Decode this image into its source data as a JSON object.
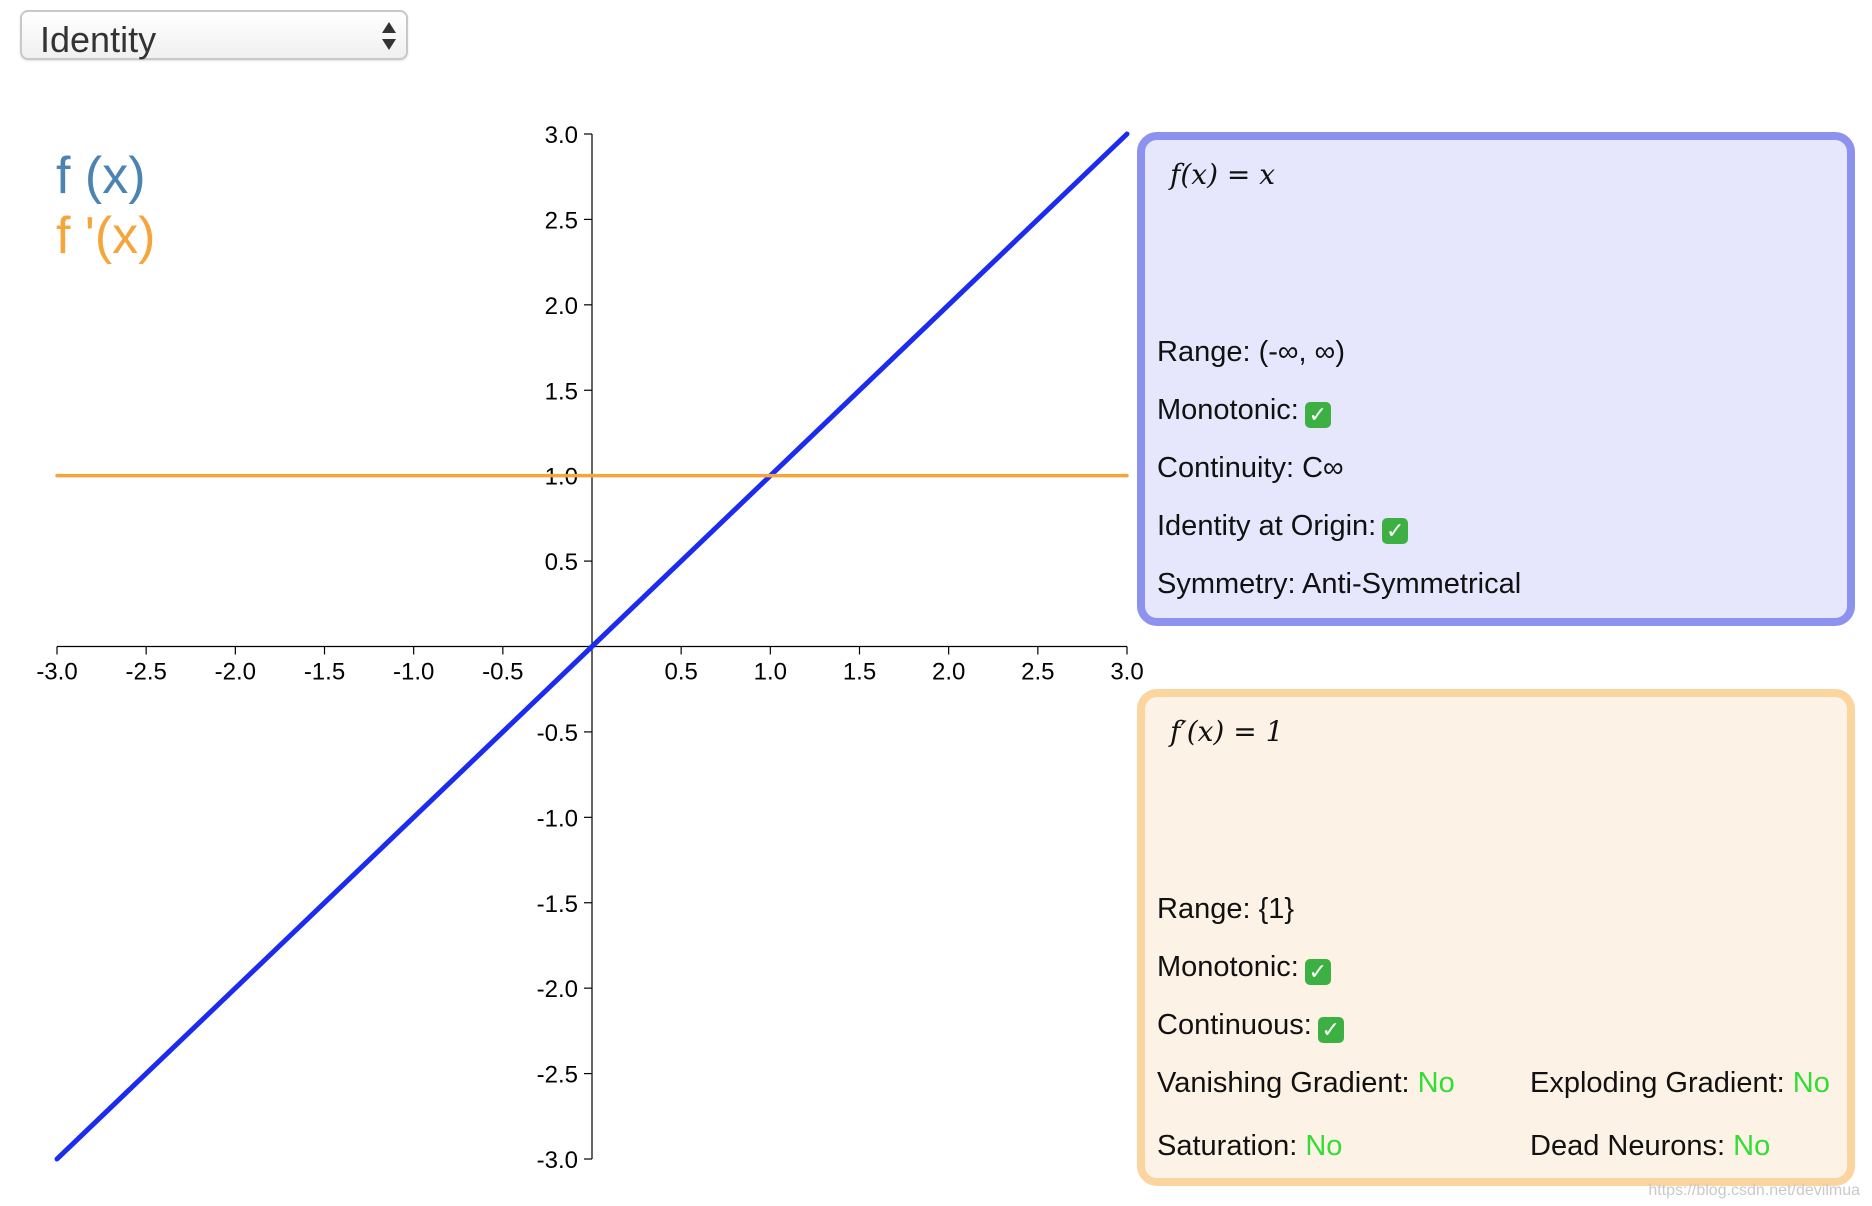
{
  "selector": {
    "selected": "Identity"
  },
  "legend": {
    "f": "f (x)",
    "df": "f '(x)"
  },
  "chart_data": {
    "type": "line",
    "xlim": [
      -3.0,
      3.0
    ],
    "ylim": [
      -3.0,
      3.0
    ],
    "x_ticks": [
      "-3.0",
      "-2.5",
      "-2.0",
      "-1.5",
      "-1.0",
      "-0.5",
      "0.5",
      "1.0",
      "1.5",
      "2.0",
      "2.5",
      "3.0"
    ],
    "y_ticks": [
      "3.0",
      "2.5",
      "2.0",
      "1.5",
      "1.0",
      "0.5",
      "-0.5",
      "-1.0",
      "-1.5",
      "-2.0",
      "-2.5",
      "-3.0"
    ],
    "series": [
      {
        "name": "f (x)",
        "color": "#1b2bf0",
        "x": [
          -3.0,
          3.0
        ],
        "y": [
          -3.0,
          3.0
        ]
      },
      {
        "name": "f '(x)",
        "color": "#f4a63c",
        "x": [
          -3.0,
          3.0
        ],
        "y": [
          1.0,
          1.0
        ]
      }
    ]
  },
  "function_panel": {
    "formula": "f(x) = x",
    "range": "Range: (-∞, ∞)",
    "monotonic": "Monotonic:",
    "continuity": "Continuity: C∞",
    "identity_at_origin": "Identity at Origin:",
    "symmetry": "Symmetry: Anti-Symmetrical"
  },
  "derivative_panel": {
    "formula": "f′(x) = 1",
    "range": "Range: {1}",
    "monotonic": "Monotonic:",
    "continuous": "Continuous:",
    "vanishing_label": "Vanishing Gradient:",
    "vanishing_value": "No",
    "exploding_label": "Exploding Gradient:",
    "exploding_value": "No",
    "saturation_label": "Saturation:",
    "saturation_value": "No",
    "dead_label": "Dead Neurons:",
    "dead_value": "No"
  },
  "check_glyph": "✓",
  "watermark": "https://blog.csdn.net/devilmua"
}
